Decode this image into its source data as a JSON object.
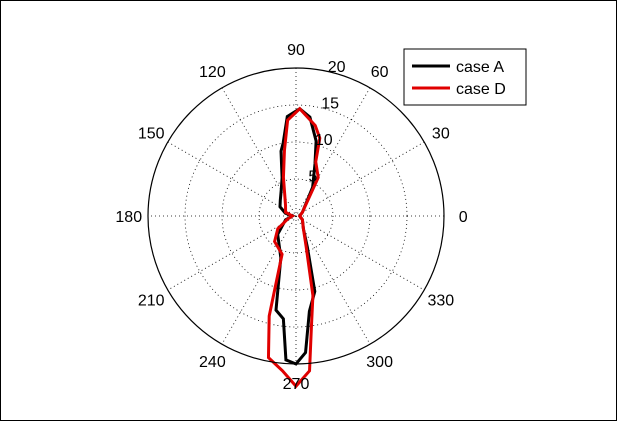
{
  "chart_data": {
    "type": "polar-line",
    "title": "",
    "rlim": [
      0,
      20
    ],
    "r_ticks": [
      5,
      10,
      15,
      20
    ],
    "theta_ticks": [
      0,
      30,
      60,
      90,
      120,
      150,
      180,
      210,
      240,
      270,
      300,
      330
    ],
    "theta_unit": "degrees",
    "grid": true,
    "legend_position": "top-right",
    "series": [
      {
        "name": "case A",
        "color": "#000000",
        "points": [
          {
            "theta": 0,
            "r": 0.5
          },
          {
            "theta": 30,
            "r": 1.0
          },
          {
            "theta": 60,
            "r": 4.5
          },
          {
            "theta": 70,
            "r": 7.5
          },
          {
            "theta": 75,
            "r": 10.5
          },
          {
            "theta": 82,
            "r": 13.5
          },
          {
            "theta": 88,
            "r": 14.5
          },
          {
            "theta": 95,
            "r": 13.5
          },
          {
            "theta": 100,
            "r": 10.0
          },
          {
            "theta": 103,
            "r": 9.0
          },
          {
            "theta": 110,
            "r": 5.5
          },
          {
            "theta": 120,
            "r": 4.0
          },
          {
            "theta": 135,
            "r": 3.0
          },
          {
            "theta": 150,
            "r": 2.5
          },
          {
            "theta": 165,
            "r": 1.5
          },
          {
            "theta": 180,
            "r": 0.5
          },
          {
            "theta": 200,
            "r": 1.5
          },
          {
            "theta": 225,
            "r": 3.5
          },
          {
            "theta": 250,
            "r": 6.0
          },
          {
            "theta": 258,
            "r": 13.0
          },
          {
            "theta": 263,
            "r": 14.0
          },
          {
            "theta": 266,
            "r": 19.5
          },
          {
            "theta": 270,
            "r": 20.0
          },
          {
            "theta": 274,
            "r": 18.5
          },
          {
            "theta": 278,
            "r": 13.0
          },
          {
            "theta": 284,
            "r": 10.5
          },
          {
            "theta": 290,
            "r": 4.5
          },
          {
            "theta": 300,
            "r": 2.0
          },
          {
            "theta": 330,
            "r": 1.0
          },
          {
            "theta": 360,
            "r": 0.5
          }
        ]
      },
      {
        "name": "case D",
        "color": "#e00000",
        "points": [
          {
            "theta": 0,
            "r": 0.5
          },
          {
            "theta": 30,
            "r": 1.0
          },
          {
            "theta": 60,
            "r": 6.0
          },
          {
            "theta": 70,
            "r": 7.8
          },
          {
            "theta": 73,
            "r": 11.0
          },
          {
            "theta": 78,
            "r": 12.5
          },
          {
            "theta": 88,
            "r": 14.5
          },
          {
            "theta": 95,
            "r": 13.0
          },
          {
            "theta": 100,
            "r": 9.0
          },
          {
            "theta": 108,
            "r": 5.5
          },
          {
            "theta": 120,
            "r": 3.0
          },
          {
            "theta": 135,
            "r": 2.0
          },
          {
            "theta": 160,
            "r": 1.5
          },
          {
            "theta": 180,
            "r": 0.5
          },
          {
            "theta": 200,
            "r": 1.2
          },
          {
            "theta": 215,
            "r": 3.0
          },
          {
            "theta": 230,
            "r": 4.5
          },
          {
            "theta": 250,
            "r": 5.5
          },
          {
            "theta": 255,
            "r": 14.0
          },
          {
            "theta": 259,
            "r": 19.5
          },
          {
            "theta": 265,
            "r": 21.0
          },
          {
            "theta": 270,
            "r": 23.0
          },
          {
            "theta": 275,
            "r": 21.0
          },
          {
            "theta": 278,
            "r": 15.0
          },
          {
            "theta": 282,
            "r": 11.0
          },
          {
            "theta": 288,
            "r": 4.5
          },
          {
            "theta": 300,
            "r": 2.0
          },
          {
            "theta": 330,
            "r": 1.0
          },
          {
            "theta": 360,
            "r": 0.5
          }
        ]
      }
    ]
  }
}
